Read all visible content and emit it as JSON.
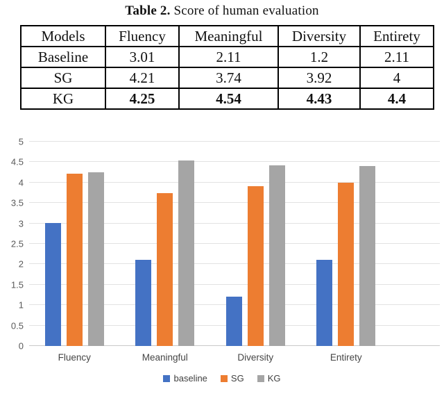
{
  "caption": {
    "label": "Table 2.",
    "text": " Score of human evaluation"
  },
  "table": {
    "columns": [
      "Models",
      "Fluency",
      "Meaningful",
      "Diversity",
      "Entirety"
    ],
    "rows": [
      {
        "model": "Baseline",
        "values": [
          "3.01",
          "2.11",
          "1.2",
          "2.11"
        ],
        "bold": false
      },
      {
        "model": "SG",
        "values": [
          "4.21",
          "3.74",
          "3.92",
          "4"
        ],
        "bold": false
      },
      {
        "model": "KG",
        "values": [
          "4.25",
          "4.54",
          "4.43",
          "4.4"
        ],
        "bold": true
      }
    ]
  },
  "chart_data": {
    "type": "bar",
    "title": "",
    "xlabel": "",
    "ylabel": "",
    "categories": [
      "Fluency",
      "Meaningful",
      "Diversity",
      "Entirety"
    ],
    "series": [
      {
        "name": "baseline",
        "color": "#4472C4",
        "values": [
          3.01,
          2.11,
          1.2,
          2.11
        ]
      },
      {
        "name": "SG",
        "color": "#ED7D31",
        "values": [
          4.21,
          3.74,
          3.92,
          4
        ]
      },
      {
        "name": "KG",
        "color": "#A5A5A5",
        "values": [
          4.25,
          4.54,
          4.43,
          4.4
        ]
      }
    ],
    "ylim": [
      0,
      5
    ],
    "ytick_step": 0.5,
    "grid": true,
    "legend_position": "bottom"
  },
  "colors": {
    "gridline": "#e2e2e2",
    "axis_line": "#c9c9c9",
    "tick_label": "#595959",
    "category_label": "#454545",
    "table_border": "#000000"
  }
}
